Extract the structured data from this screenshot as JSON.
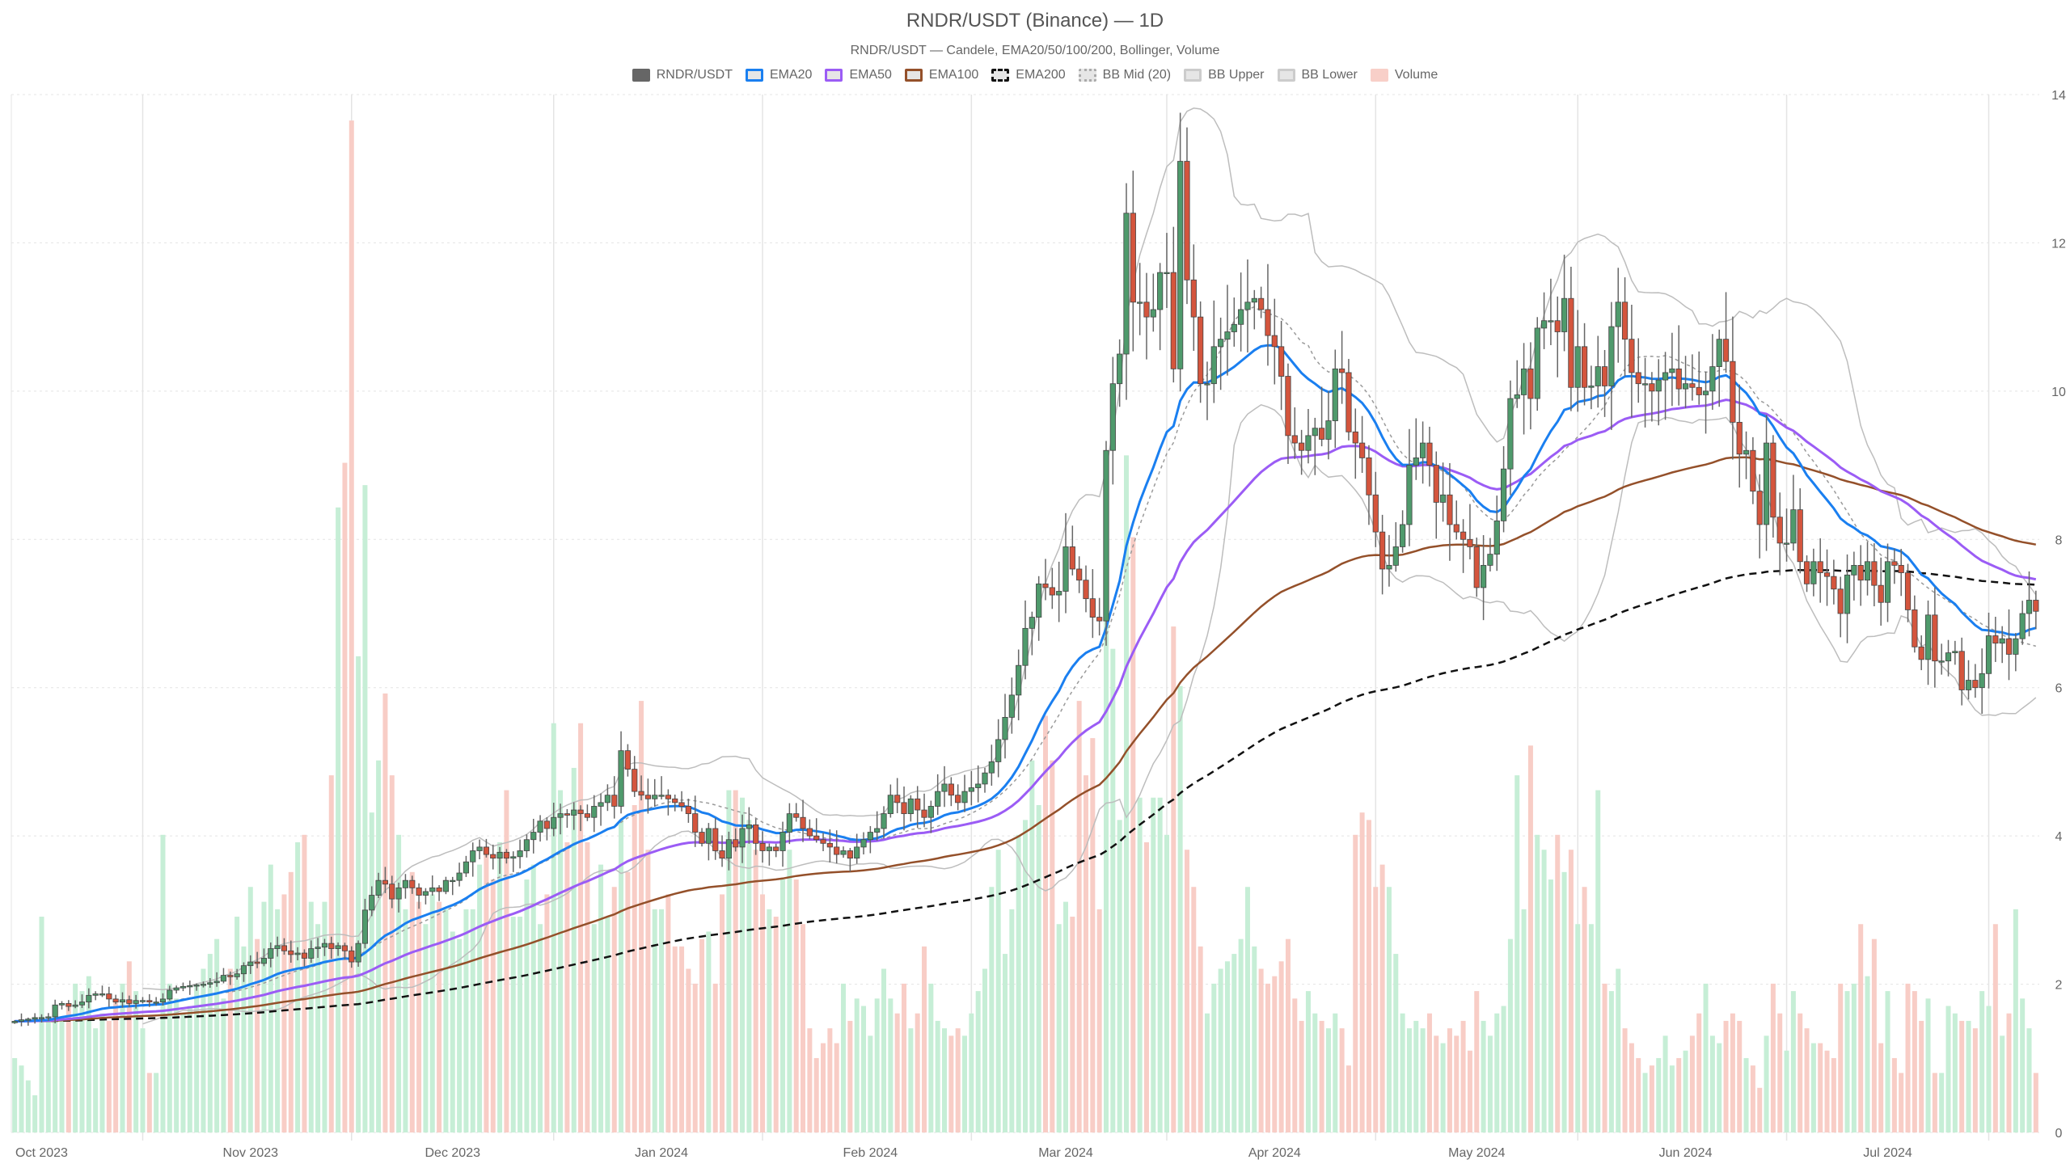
{
  "title": "RNDR/USDT (Binance) — 1D",
  "subtitle": "RNDR/USDT — Candele, EMA20/50/100/200, Bollinger, Volume",
  "legend": [
    {
      "label": "RNDR/USDT",
      "fill": "#666666",
      "border": "#666666",
      "style": "solid"
    },
    {
      "label": "EMA20",
      "fill": "#e6e6e6",
      "border": "#1a7ff0",
      "style": "solid"
    },
    {
      "label": "EMA50",
      "fill": "#e6e6e6",
      "border": "#9b5cf5",
      "style": "solid"
    },
    {
      "label": "EMA100",
      "fill": "#e6e6e6",
      "border": "#94502a",
      "style": "solid"
    },
    {
      "label": "EMA200",
      "fill": "#e6e6e6",
      "border": "#111111",
      "style": "dashed"
    },
    {
      "label": "BB Mid (20)",
      "fill": "#e6e6e6",
      "border": "#aaaaaa",
      "style": "dotted"
    },
    {
      "label": "BB Upper",
      "fill": "#e6e6e6",
      "border": "#cccccc",
      "style": "solid"
    },
    {
      "label": "BB Lower",
      "fill": "#e6e6e6",
      "border": "#cccccc",
      "style": "solid"
    },
    {
      "label": "Volume",
      "fill": "#f8cfc8",
      "border": "#f8cfc8",
      "style": "solid"
    }
  ],
  "colors": {
    "up": "#4f9a6c",
    "down": "#d4553d",
    "wick": "#666666",
    "vol_up": "#c6eed6",
    "vol_down": "#f8cdc6",
    "ema20": "#1a7ff0",
    "ema50": "#9b5cf5",
    "ema100": "#94502a",
    "ema200": "#111111",
    "bb": "#bdbdbd",
    "bb_mid": "#9a9a9a",
    "grid": "#e4e4e4"
  },
  "chart_data": {
    "type": "candlestick",
    "interval": "1D",
    "first_date": "2023-09-27",
    "ylim": [
      0,
      14
    ],
    "y_ticks": [
      "0",
      "2",
      "4",
      "6",
      "8",
      "10",
      "12",
      "14"
    ],
    "y_axis_side": "right",
    "grid": true,
    "legend_position": "top",
    "x_ticks": [
      {
        "label": "Oct 2023",
        "date": "2023-10-01"
      },
      {
        "label": "Nov 2023",
        "date": "2023-11-01"
      },
      {
        "label": "Dec 2023",
        "date": "2023-12-01"
      },
      {
        "label": "Jan 2024",
        "date": "2024-01-01"
      },
      {
        "label": "Feb 2024",
        "date": "2024-02-01"
      },
      {
        "label": "Mar 2024",
        "date": "2024-03-01"
      },
      {
        "label": "Apr 2024",
        "date": "2024-04-01"
      },
      {
        "label": "May 2024",
        "date": "2024-05-01"
      },
      {
        "label": "Jun 2024",
        "date": "2024-06-01"
      },
      {
        "label": "Jul 2024",
        "date": "2024-07-01"
      }
    ],
    "first_open": 1.48,
    "close": [
      1.5,
      1.52,
      1.53,
      1.55,
      1.55,
      1.56,
      1.72,
      1.74,
      1.7,
      1.72,
      1.76,
      1.85,
      1.87,
      1.87,
      1.8,
      1.76,
      1.79,
      1.74,
      1.78,
      1.78,
      1.76,
      1.76,
      1.8,
      1.92,
      1.95,
      1.97,
      1.98,
      1.99,
      2.0,
      2.02,
      2.04,
      2.12,
      2.1,
      2.14,
      2.25,
      2.3,
      2.28,
      2.35,
      2.48,
      2.52,
      2.45,
      2.4,
      2.42,
      2.35,
      2.48,
      2.5,
      2.55,
      2.48,
      2.52,
      2.45,
      2.3,
      2.55,
      3.0,
      3.2,
      3.4,
      3.35,
      3.15,
      3.3,
      3.4,
      3.3,
      3.2,
      3.25,
      3.3,
      3.25,
      3.4,
      3.4,
      3.5,
      3.65,
      3.8,
      3.85,
      3.75,
      3.7,
      3.78,
      3.7,
      3.72,
      3.8,
      3.95,
      4.05,
      4.2,
      4.1,
      4.25,
      4.3,
      4.28,
      4.35,
      4.3,
      4.25,
      4.4,
      4.45,
      4.55,
      4.4,
      5.15,
      4.9,
      4.6,
      4.55,
      4.5,
      4.55,
      4.55,
      4.5,
      4.45,
      4.4,
      4.3,
      4.05,
      3.9,
      4.1,
      3.8,
      3.7,
      3.95,
      3.85,
      4.1,
      4.15,
      3.9,
      3.8,
      3.85,
      3.8,
      4.05,
      4.3,
      4.25,
      4.1,
      4.0,
      3.95,
      3.9,
      3.85,
      3.75,
      3.8,
      3.7,
      3.85,
      3.95,
      4.05,
      4.1,
      4.3,
      4.55,
      4.45,
      4.3,
      4.5,
      4.35,
      4.25,
      4.4,
      4.6,
      4.7,
      4.55,
      4.45,
      4.6,
      4.65,
      4.7,
      4.85,
      5.0,
      5.3,
      5.6,
      5.9,
      6.3,
      6.8,
      6.95,
      7.4,
      7.35,
      7.25,
      7.3,
      7.9,
      7.6,
      7.45,
      7.2,
      6.95,
      6.9,
      9.2,
      10.1,
      10.5,
      12.4,
      11.2,
      11.2,
      11.0,
      11.1,
      11.6,
      11.6,
      10.3,
      13.1,
      11.5,
      11.0,
      10.1,
      10.1,
      10.6,
      10.7,
      10.8,
      10.9,
      11.1,
      11.2,
      11.25,
      11.1,
      10.75,
      10.6,
      10.2,
      9.4,
      9.3,
      9.2,
      9.4,
      9.5,
      9.35,
      9.6,
      10.3,
      10.25,
      9.45,
      9.3,
      9.1,
      8.6,
      8.1,
      7.6,
      7.65,
      7.9,
      8.2,
      9.0,
      9.1,
      9.3,
      9.0,
      8.5,
      8.6,
      8.2,
      8.1,
      8.0,
      7.9,
      7.35,
      7.65,
      7.8,
      8.25,
      8.95,
      9.9,
      9.95,
      10.3,
      9.9,
      10.85,
      10.95,
      10.95,
      10.8,
      11.25,
      10.05,
      10.6,
      10.05,
      10.07,
      10.33,
      10.07,
      10.87,
      11.2,
      10.7,
      10.25,
      10.1,
      10.1,
      10.0,
      10.15,
      10.25,
      10.3,
      10.03,
      10.1,
      10.05,
      9.95,
      10.0,
      10.33,
      10.7,
      10.4,
      9.58,
      9.15,
      9.2,
      8.65,
      8.2,
      9.3,
      8.3,
      7.95,
      7.95,
      8.4,
      7.7,
      7.4,
      7.7,
      7.55,
      7.5,
      7.33,
      7.0,
      7.52,
      7.65,
      7.45,
      7.7,
      7.38,
      7.15,
      7.7,
      7.65,
      7.55,
      7.05,
      6.55,
      6.38,
      6.98,
      6.36,
      6.36,
      6.47,
      6.49,
      5.97,
      6.1,
      6.0,
      6.19,
      6.7,
      6.6,
      6.66,
      6.45,
      6.66,
      7.0,
      7.18,
      7.03
    ],
    "volume": [
      1.0,
      0.9,
      0.7,
      0.5,
      2.9,
      1.5,
      1.6,
      1.5,
      1.7,
      2.0,
      1.9,
      2.1,
      1.4,
      1.6,
      1.5,
      1.8,
      2.0,
      2.3,
      1.9,
      1.4,
      0.8,
      0.8,
      4.0,
      2.0,
      1.8,
      1.6,
      1.7,
      2.0,
      2.2,
      2.4,
      2.6,
      1.8,
      2.2,
      2.9,
      2.5,
      3.3,
      2.6,
      3.1,
      3.6,
      3.0,
      3.2,
      3.5,
      3.9,
      4.0,
      3.1,
      2.8,
      3.1,
      4.8,
      8.4,
      9.0,
      13.6,
      6.4,
      8.7,
      4.3,
      5.0,
      5.9,
      4.8,
      4.0,
      3.0,
      3.5,
      3.1,
      2.8,
      3.2,
      3.1,
      3.0,
      2.7,
      2.6,
      3.0,
      3.0,
      3.6,
      3.8,
      3.4,
      3.9,
      4.6,
      2.9,
      2.9,
      3.4,
      3.6,
      2.8,
      3.2,
      5.5,
      4.6,
      3.9,
      4.9,
      5.5,
      3.9,
      2.8,
      3.6,
      2.9,
      3.3,
      4.2,
      3.5,
      4.4,
      5.8,
      3.8,
      3.0,
      3.0,
      3.2,
      2.5,
      2.5,
      2.2,
      2.0,
      2.6,
      2.7,
      2.0,
      3.2,
      4.6,
      4.6,
      4.5,
      4.2,
      3.8,
      3.2,
      3.0,
      2.9,
      3.4,
      3.8,
      3.4,
      2.8,
      1.4,
      1.0,
      1.2,
      1.4,
      1.2,
      2.0,
      1.5,
      1.8,
      1.7,
      1.3,
      1.8,
      2.2,
      1.8,
      1.6,
      2.0,
      1.4,
      1.6,
      2.5,
      2.0,
      1.5,
      1.4,
      1.3,
      1.4,
      1.3,
      1.6,
      1.9,
      2.2,
      3.3,
      3.8,
      2.4,
      3.0,
      4.0,
      4.2,
      5.0,
      4.4,
      5.6,
      5.0,
      2.8,
      3.1,
      2.9,
      5.8,
      4.8,
      5.3,
      3.0,
      7.4,
      6.5,
      4.2,
      9.1,
      8.0,
      4.5,
      3.9,
      4.5,
      4.5,
      4.0,
      6.8,
      6.0,
      3.8,
      3.3,
      2.5,
      1.6,
      2.0,
      2.2,
      2.3,
      2.4,
      2.6,
      3.3,
      2.5,
      2.2,
      2.0,
      2.1,
      2.3,
      2.6,
      1.8,
      1.5,
      1.9,
      1.6,
      1.5,
      1.4,
      1.6,
      1.4,
      0.9,
      4.0,
      4.3,
      4.2,
      3.3,
      3.6,
      3.3,
      2.4,
      1.6,
      1.4,
      1.5,
      1.4,
      1.6,
      1.3,
      1.2,
      1.4,
      1.3,
      1.5,
      1.1,
      1.9,
      1.5,
      1.3,
      1.6,
      1.7,
      2.6,
      4.8,
      3.0,
      5.2,
      4.0,
      3.8,
      3.4,
      4.0,
      3.5,
      3.8,
      2.8,
      3.3,
      2.8,
      4.6,
      2.0,
      1.9,
      2.2,
      1.4,
      1.2,
      1.0,
      0.8,
      0.9,
      1.0,
      1.3,
      0.9,
      1.0,
      1.1,
      1.3,
      1.6,
      2.0,
      1.3,
      1.2,
      1.5,
      1.6,
      1.5,
      1.0,
      0.9,
      0.6,
      1.3,
      2.0,
      1.6,
      1.1,
      1.9,
      1.6,
      1.4,
      1.2,
      1.2,
      1.1,
      1.0,
      2.0,
      1.9,
      2.0,
      2.8,
      2.1,
      2.6,
      1.2,
      1.9,
      1.0,
      0.8,
      2.0,
      1.9,
      1.5,
      1.8,
      0.8,
      0.8,
      1.7,
      1.6,
      1.5,
      1.5,
      1.4,
      1.9,
      1.7,
      2.8,
      1.3,
      1.6,
      3.0,
      1.8,
      1.4,
      0.8
    ],
    "indicators": {
      "ema": [
        20,
        50,
        100,
        200
      ],
      "bollinger": {
        "period": 20,
        "stddev": 2
      }
    }
  }
}
